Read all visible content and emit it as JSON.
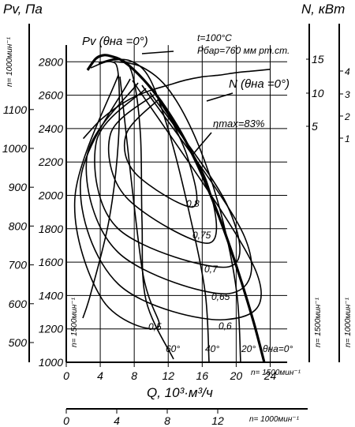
{
  "chart_data": {
    "type": "line",
    "title": "",
    "xlabel": "Q, 10³·м³/ч",
    "ylabel": "Pv, Па",
    "y_right_label": "N, кВт",
    "xlim": [
      0,
      26
    ],
    "ylim": [
      1000,
      2900
    ],
    "grid": true,
    "x_ticks": [
      "0",
      "4",
      "8",
      "12",
      "16",
      "20",
      "24"
    ],
    "y_ticks": [
      "1000",
      "1200",
      "1400",
      "1600",
      "1800",
      "2000",
      "2200",
      "2400",
      "2600",
      "2800"
    ],
    "x_note": "n= 1500мин⁻¹",
    "x2_label": "n= 1000мин⁻¹",
    "x2_ticks": [
      "0",
      "4",
      "8",
      "12"
    ],
    "left_scale": {
      "label": "n= 1000мин⁻¹",
      "ticks": [
        "500",
        "600",
        "700",
        "800",
        "900",
        "1000",
        "1100"
      ],
      "note": "n= 1500мин⁻¹"
    },
    "right_scale_n1500": {
      "ticks": [
        "5",
        "10",
        "15"
      ],
      "note": "n= 1500мин⁻¹"
    },
    "right_scale_n1000": {
      "ticks": [
        "1",
        "2",
        "3",
        "4"
      ],
      "note": "n= 1000мин⁻¹"
    },
    "annotations": {
      "pv": "Pv (θна =0°)",
      "conditions_t": "t=100°C",
      "conditions_p": "Рбар=760 мм рт.ст.",
      "power": "N (θна =0°)",
      "eta": "ηmax=83%"
    },
    "efficiency_labels": [
      "0,8",
      "0,75",
      "0,7",
      "0,65",
      "0,6",
      "0,5"
    ],
    "angle_labels": [
      "60°",
      "40°",
      "20°",
      "θна=0°"
    ],
    "series": [
      {
        "name": "Pv (θна =0°)",
        "x": [
          2.5,
          3.5,
          4.5,
          5.5,
          6.5,
          8,
          10,
          12,
          14,
          16,
          18,
          20,
          22,
          23.3
        ],
        "y": [
          2750,
          2820,
          2840,
          2830,
          2810,
          2750,
          2640,
          2500,
          2330,
          2120,
          1870,
          1580,
          1250,
          1000
        ]
      },
      {
        "name": "N (θна =0°)",
        "x": [
          2,
          4,
          6,
          8,
          10,
          12,
          14,
          16,
          18,
          20,
          22,
          24
        ],
        "y": [
          2340,
          2450,
          2530,
          2590,
          2630,
          2660,
          2690,
          2710,
          2720,
          2735,
          2745,
          2755
        ]
      }
    ]
  }
}
